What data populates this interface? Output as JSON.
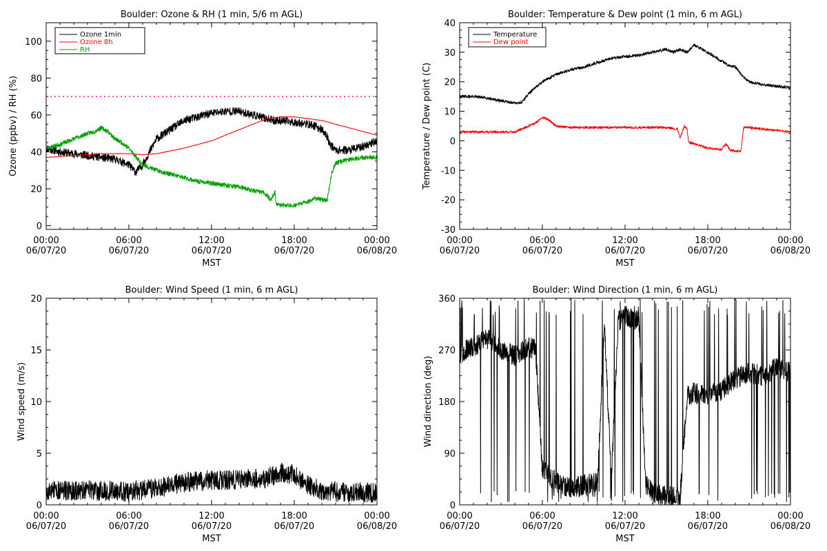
{
  "colors": {
    "ozone_1min": "#000000",
    "ozone_8h": "#ff0000",
    "rh": "#00a000",
    "temperature": "#000000",
    "dew_point": "#ff0000",
    "wind": "#000000",
    "threshold": "#ff0000"
  },
  "x_axis": {
    "range_hours": [
      0,
      24
    ],
    "ticks": [
      {
        "hour": 0,
        "time": "00:00",
        "date": "06/07/20"
      },
      {
        "hour": 6,
        "time": "06:00",
        "date": "06/07/20"
      },
      {
        "hour": 12,
        "time": "12:00",
        "date": "06/07/20"
      },
      {
        "hour": 18,
        "time": "18:00",
        "date": "06/07/20"
      },
      {
        "hour": 24,
        "time": "00:00",
        "date": "06/08/20"
      }
    ],
    "label": "MST"
  },
  "chart_data": [
    {
      "type": "line",
      "title": "Boulder: Ozone & RH (1 min, 5/6 m AGL)",
      "ylabel": "Ozone (ppbv) / RH (%)",
      "xlabel": "MST",
      "ylim": [
        -2,
        110
      ],
      "yticks": [
        0,
        20,
        40,
        60,
        80,
        100
      ],
      "legend": "top-left",
      "reference_line": {
        "y": 70,
        "style": "dotted",
        "color": "#ff0000"
      },
      "series": [
        {
          "name": "Ozone 1min",
          "color": "#000000",
          "noise": 2.2,
          "seed": 11,
          "points": [
            [
              0,
              42
            ],
            [
              1,
              40
            ],
            [
              2,
              39
            ],
            [
              3,
              38
            ],
            [
              4,
              37
            ],
            [
              5,
              36
            ],
            [
              6,
              33
            ],
            [
              6.5,
              29
            ],
            [
              7,
              33
            ],
            [
              7.5,
              40
            ],
            [
              8,
              47
            ],
            [
              9,
              52
            ],
            [
              10,
              57
            ],
            [
              11,
              59
            ],
            [
              12,
              61
            ],
            [
              13,
              62
            ],
            [
              14,
              62
            ],
            [
              15,
              60
            ],
            [
              16,
              58
            ],
            [
              16.5,
              57
            ],
            [
              17,
              57
            ],
            [
              18,
              56
            ],
            [
              19,
              55
            ],
            [
              19.5,
              54
            ],
            [
              20,
              52
            ],
            [
              20.4,
              48
            ],
            [
              20.6,
              44
            ],
            [
              21,
              41
            ],
            [
              22,
              41
            ],
            [
              23,
              43
            ],
            [
              24,
              46
            ]
          ]
        },
        {
          "name": "Ozone 8h",
          "color": "#ff0000",
          "noise": 0.1,
          "seed": 5,
          "points": [
            [
              0,
              37
            ],
            [
              2,
              38
            ],
            [
              4,
              39
            ],
            [
              6,
              39
            ],
            [
              7,
              38.5
            ],
            [
              8,
              39
            ],
            [
              10,
              42
            ],
            [
              12,
              46
            ],
            [
              14,
              52
            ],
            [
              15,
              55
            ],
            [
              16,
              58
            ],
            [
              17,
              59
            ],
            [
              18,
              59
            ],
            [
              19,
              58
            ],
            [
              20,
              57
            ],
            [
              21,
              55
            ],
            [
              22,
              53
            ],
            [
              23,
              51
            ],
            [
              24,
              49
            ]
          ]
        },
        {
          "name": "RH",
          "color": "#00a000",
          "noise": 1.2,
          "seed": 23,
          "points": [
            [
              0,
              42
            ],
            [
              1,
              44
            ],
            [
              2,
              47
            ],
            [
              3,
              50
            ],
            [
              3.5,
              51
            ],
            [
              4,
              53
            ],
            [
              4.5,
              51
            ],
            [
              5,
              47
            ],
            [
              5.5,
              45
            ],
            [
              6,
              42
            ],
            [
              7,
              33
            ],
            [
              8,
              30
            ],
            [
              9,
              28
            ],
            [
              10,
              26
            ],
            [
              11,
              24
            ],
            [
              12,
              23
            ],
            [
              13,
              22
            ],
            [
              14,
              21
            ],
            [
              15,
              19
            ],
            [
              15.8,
              18
            ],
            [
              16.3,
              14
            ],
            [
              16.6,
              18
            ],
            [
              16.7,
              12
            ],
            [
              17,
              11
            ],
            [
              18,
              11
            ],
            [
              19,
              13
            ],
            [
              19.5,
              15
            ],
            [
              20,
              14
            ],
            [
              20.4,
              14
            ],
            [
              20.7,
              28
            ],
            [
              21,
              34
            ],
            [
              22,
              36
            ],
            [
              23,
              37
            ],
            [
              24,
              37
            ]
          ]
        }
      ]
    },
    {
      "type": "line",
      "title": "Boulder: Temperature & Dew point (1 min, 6 m AGL)",
      "ylabel": "Temperature / Dew point (C)",
      "xlabel": "MST",
      "ylim": [
        -30,
        40
      ],
      "yticks": [
        -30,
        -20,
        -10,
        0,
        10,
        20,
        30,
        40
      ],
      "legend": "top-left",
      "series": [
        {
          "name": "Temperature",
          "color": "#000000",
          "noise": 0.5,
          "seed": 31,
          "points": [
            [
              0,
              15
            ],
            [
              1,
              15
            ],
            [
              2,
              14.5
            ],
            [
              3,
              13.5
            ],
            [
              4,
              12.8
            ],
            [
              4.5,
              13
            ],
            [
              5,
              16
            ],
            [
              5.5,
              18
            ],
            [
              6,
              20
            ],
            [
              7,
              22.5
            ],
            [
              8,
              24
            ],
            [
              9,
              25
            ],
            [
              10,
              26.5
            ],
            [
              11,
              28
            ],
            [
              12,
              28.5
            ],
            [
              13,
              29
            ],
            [
              14,
              30
            ],
            [
              15,
              31
            ],
            [
              15.5,
              30
            ],
            [
              16,
              31
            ],
            [
              16.5,
              30
            ],
            [
              17,
              32.5
            ],
            [
              18,
              30
            ],
            [
              19,
              27
            ],
            [
              19.5,
              25.5
            ],
            [
              20,
              25
            ],
            [
              20.5,
              22
            ],
            [
              21,
              20
            ],
            [
              22,
              19
            ],
            [
              23,
              18.5
            ],
            [
              24,
              18
            ]
          ]
        },
        {
          "name": "Dew point",
          "color": "#ff0000",
          "noise": 0.4,
          "seed": 41,
          "points": [
            [
              0,
              3
            ],
            [
              1,
              3
            ],
            [
              2,
              3
            ],
            [
              3,
              3
            ],
            [
              4,
              3
            ],
            [
              4.5,
              4
            ],
            [
              5,
              5
            ],
            [
              5.5,
              6
            ],
            [
              6,
              8
            ],
            [
              6.5,
              7
            ],
            [
              7,
              5
            ],
            [
              8,
              4.5
            ],
            [
              10,
              4.5
            ],
            [
              12,
              4.5
            ],
            [
              14,
              4.5
            ],
            [
              15,
              4.5
            ],
            [
              15.8,
              4
            ],
            [
              16,
              1
            ],
            [
              16.3,
              5
            ],
            [
              16.5,
              4
            ],
            [
              16.6,
              -0.5
            ],
            [
              17,
              -1
            ],
            [
              18,
              -2.5
            ],
            [
              19,
              -3
            ],
            [
              19.3,
              -1
            ],
            [
              19.6,
              -3
            ],
            [
              20,
              -3.5
            ],
            [
              20.4,
              -3.5
            ],
            [
              20.6,
              4.5
            ],
            [
              21,
              4.5
            ],
            [
              22,
              4
            ],
            [
              23,
              3.5
            ],
            [
              24,
              3
            ]
          ]
        }
      ]
    },
    {
      "type": "line",
      "title": "Boulder: Wind Speed (1 min, 6 m AGL)",
      "ylabel": "Wind speed (m/s)",
      "xlabel": "MST",
      "ylim": [
        0,
        20
      ],
      "yticks": [
        0,
        5,
        10,
        15,
        20
      ],
      "series": [
        {
          "name": "",
          "color": "#000000",
          "noise": 1.3,
          "seed": 53,
          "min": 0,
          "spiky": true,
          "points": [
            [
              0,
              1
            ],
            [
              3,
              1
            ],
            [
              6,
              0.9
            ],
            [
              8,
              1.2
            ],
            [
              10,
              1.8
            ],
            [
              12,
              2
            ],
            [
              14,
              2
            ],
            [
              16,
              2.2
            ],
            [
              17,
              2.8
            ],
            [
              18,
              2.5
            ],
            [
              19,
              1.6
            ],
            [
              20,
              1
            ],
            [
              22,
              0.8
            ],
            [
              24,
              0.8
            ]
          ]
        }
      ]
    },
    {
      "type": "line",
      "title": "Boulder: Wind Direction (1 min, 6 m AGL)",
      "ylabel": "Wind direction (deg)",
      "xlabel": "MST",
      "ylim": [
        0,
        360
      ],
      "yticks": [
        0,
        90,
        180,
        270,
        360
      ],
      "series": [
        {
          "name": "",
          "color": "#000000",
          "noise": 18,
          "seed": 67,
          "min": 0,
          "max": 360,
          "jumps": 0.07,
          "wrap": true,
          "points": [
            [
              0,
              265
            ],
            [
              1,
              275
            ],
            [
              2,
              290
            ],
            [
              3,
              270
            ],
            [
              4,
              260
            ],
            [
              5,
              275
            ],
            [
              5.5,
              270
            ],
            [
              6,
              60
            ],
            [
              7,
              40
            ],
            [
              8,
              30
            ],
            [
              9,
              35
            ],
            [
              10,
              40
            ],
            [
              10.5,
              320
            ],
            [
              11,
              40
            ],
            [
              11.5,
              320
            ],
            [
              12,
              330
            ],
            [
              13,
              320
            ],
            [
              13.5,
              40
            ],
            [
              14,
              20
            ],
            [
              15,
              15
            ],
            [
              16,
              15
            ],
            [
              16.5,
              190
            ],
            [
              17,
              195
            ],
            [
              18,
              190
            ],
            [
              19,
              200
            ],
            [
              20,
              220
            ],
            [
              21,
              230
            ],
            [
              22,
              225
            ],
            [
              23,
              240
            ],
            [
              24,
              230
            ]
          ]
        }
      ]
    }
  ]
}
